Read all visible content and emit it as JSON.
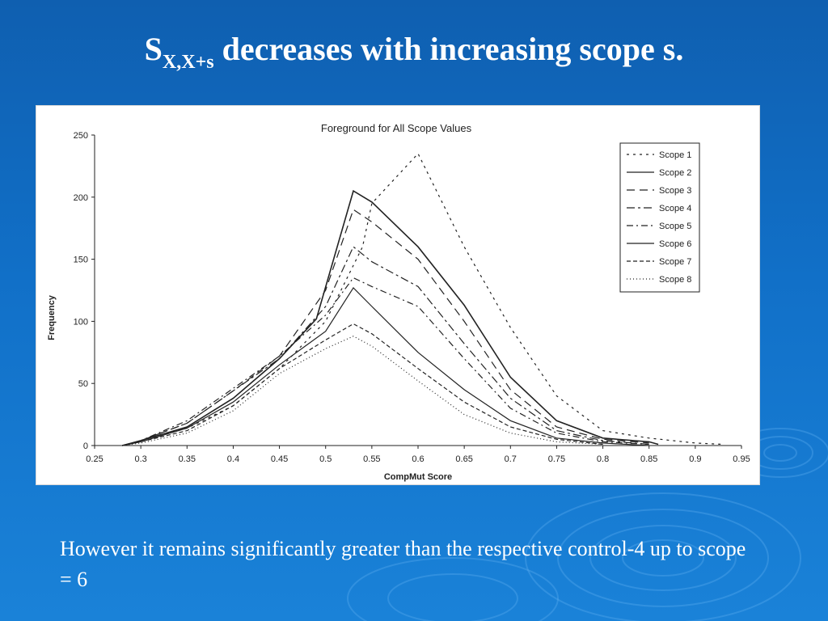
{
  "slide": {
    "title_main": "S",
    "title_sub": "X,X+s",
    "title_rest": " decreases with increasing scope s.",
    "caption": "However it remains significantly greater than the respective control-4 up to scope = 6"
  },
  "colors": {
    "background": "#1170c8",
    "text": "#ffffff",
    "plot_line": "#222222"
  },
  "chart_data": {
    "type": "line",
    "title": "Foreground for All Scope Values",
    "xlabel": "CompMut Score",
    "ylabel": "Frequency",
    "xlim": [
      0.25,
      0.95
    ],
    "ylim": [
      0,
      250
    ],
    "x_ticks": [
      "0.25",
      "0.3",
      "0.35",
      "0.4",
      "0.45",
      "0.5",
      "0.55",
      "0.6",
      "0.65",
      "0.7",
      "0.75",
      "0.8",
      "0.85",
      "0.9",
      "0.95"
    ],
    "y_ticks": [
      "0",
      "50",
      "100",
      "150",
      "200",
      "250"
    ],
    "legend_position": "top-right",
    "grid": false,
    "series": [
      {
        "name": "Scope 1",
        "dash": "3,5",
        "points": [
          [
            0.28,
            0
          ],
          [
            0.3,
            4
          ],
          [
            0.35,
            14
          ],
          [
            0.4,
            32
          ],
          [
            0.45,
            62
          ],
          [
            0.5,
            100
          ],
          [
            0.54,
            160
          ],
          [
            0.55,
            195
          ],
          [
            0.6,
            235
          ],
          [
            0.65,
            160
          ],
          [
            0.7,
            95
          ],
          [
            0.75,
            40
          ],
          [
            0.8,
            12
          ],
          [
            0.85,
            6
          ],
          [
            0.9,
            2
          ],
          [
            0.93,
            1
          ]
        ]
      },
      {
        "name": "Scope 2",
        "dash": "",
        "points": [
          [
            0.28,
            0
          ],
          [
            0.3,
            4
          ],
          [
            0.35,
            15
          ],
          [
            0.4,
            38
          ],
          [
            0.45,
            70
          ],
          [
            0.49,
            102
          ],
          [
            0.53,
            205
          ],
          [
            0.55,
            196
          ],
          [
            0.6,
            160
          ],
          [
            0.65,
            113
          ],
          [
            0.7,
            55
          ],
          [
            0.75,
            20
          ],
          [
            0.8,
            6
          ],
          [
            0.85,
            3
          ],
          [
            0.86,
            1
          ]
        ]
      },
      {
        "name": "Scope 3",
        "dash": "10,6",
        "points": [
          [
            0.28,
            0
          ],
          [
            0.3,
            4
          ],
          [
            0.35,
            18
          ],
          [
            0.4,
            44
          ],
          [
            0.45,
            72
          ],
          [
            0.5,
            125
          ],
          [
            0.53,
            190
          ],
          [
            0.55,
            180
          ],
          [
            0.6,
            150
          ],
          [
            0.65,
            100
          ],
          [
            0.7,
            45
          ],
          [
            0.75,
            15
          ],
          [
            0.8,
            5
          ],
          [
            0.85,
            2
          ]
        ]
      },
      {
        "name": "Scope 4",
        "dash": "10,4,3,4",
        "points": [
          [
            0.28,
            0
          ],
          [
            0.3,
            4
          ],
          [
            0.35,
            18
          ],
          [
            0.4,
            44
          ],
          [
            0.45,
            70
          ],
          [
            0.5,
            112
          ],
          [
            0.53,
            160
          ],
          [
            0.55,
            148
          ],
          [
            0.6,
            128
          ],
          [
            0.65,
            82
          ],
          [
            0.7,
            38
          ],
          [
            0.75,
            12
          ],
          [
            0.8,
            4
          ],
          [
            0.85,
            1
          ]
        ]
      },
      {
        "name": "Scope 5",
        "dash": "8,4,2,4",
        "points": [
          [
            0.28,
            0
          ],
          [
            0.3,
            4
          ],
          [
            0.35,
            20
          ],
          [
            0.4,
            46
          ],
          [
            0.45,
            72
          ],
          [
            0.5,
            105
          ],
          [
            0.53,
            135
          ],
          [
            0.55,
            128
          ],
          [
            0.6,
            112
          ],
          [
            0.65,
            70
          ],
          [
            0.7,
            30
          ],
          [
            0.75,
            10
          ],
          [
            0.8,
            3
          ],
          [
            0.85,
            1
          ]
        ]
      },
      {
        "name": "Scope 6",
        "dash": "",
        "points": [
          [
            0.28,
            0
          ],
          [
            0.3,
            3
          ],
          [
            0.35,
            14
          ],
          [
            0.4,
            35
          ],
          [
            0.45,
            65
          ],
          [
            0.5,
            92
          ],
          [
            0.53,
            127
          ],
          [
            0.55,
            112
          ],
          [
            0.6,
            75
          ],
          [
            0.65,
            45
          ],
          [
            0.7,
            20
          ],
          [
            0.75,
            6
          ],
          [
            0.8,
            2
          ],
          [
            0.85,
            0
          ]
        ]
      },
      {
        "name": "Scope 7",
        "dash": "5,3",
        "points": [
          [
            0.28,
            0
          ],
          [
            0.3,
            3
          ],
          [
            0.35,
            12
          ],
          [
            0.4,
            32
          ],
          [
            0.45,
            62
          ],
          [
            0.5,
            85
          ],
          [
            0.53,
            98
          ],
          [
            0.55,
            90
          ],
          [
            0.6,
            62
          ],
          [
            0.65,
            35
          ],
          [
            0.7,
            15
          ],
          [
            0.75,
            5
          ],
          [
            0.8,
            1
          ]
        ]
      },
      {
        "name": "Scope 8",
        "dash": "1,3",
        "points": [
          [
            0.28,
            0
          ],
          [
            0.3,
            2
          ],
          [
            0.35,
            10
          ],
          [
            0.4,
            28
          ],
          [
            0.45,
            58
          ],
          [
            0.5,
            78
          ],
          [
            0.53,
            88
          ],
          [
            0.55,
            80
          ],
          [
            0.6,
            52
          ],
          [
            0.65,
            25
          ],
          [
            0.7,
            10
          ],
          [
            0.75,
            3
          ],
          [
            0.8,
            1
          ]
        ]
      }
    ]
  }
}
